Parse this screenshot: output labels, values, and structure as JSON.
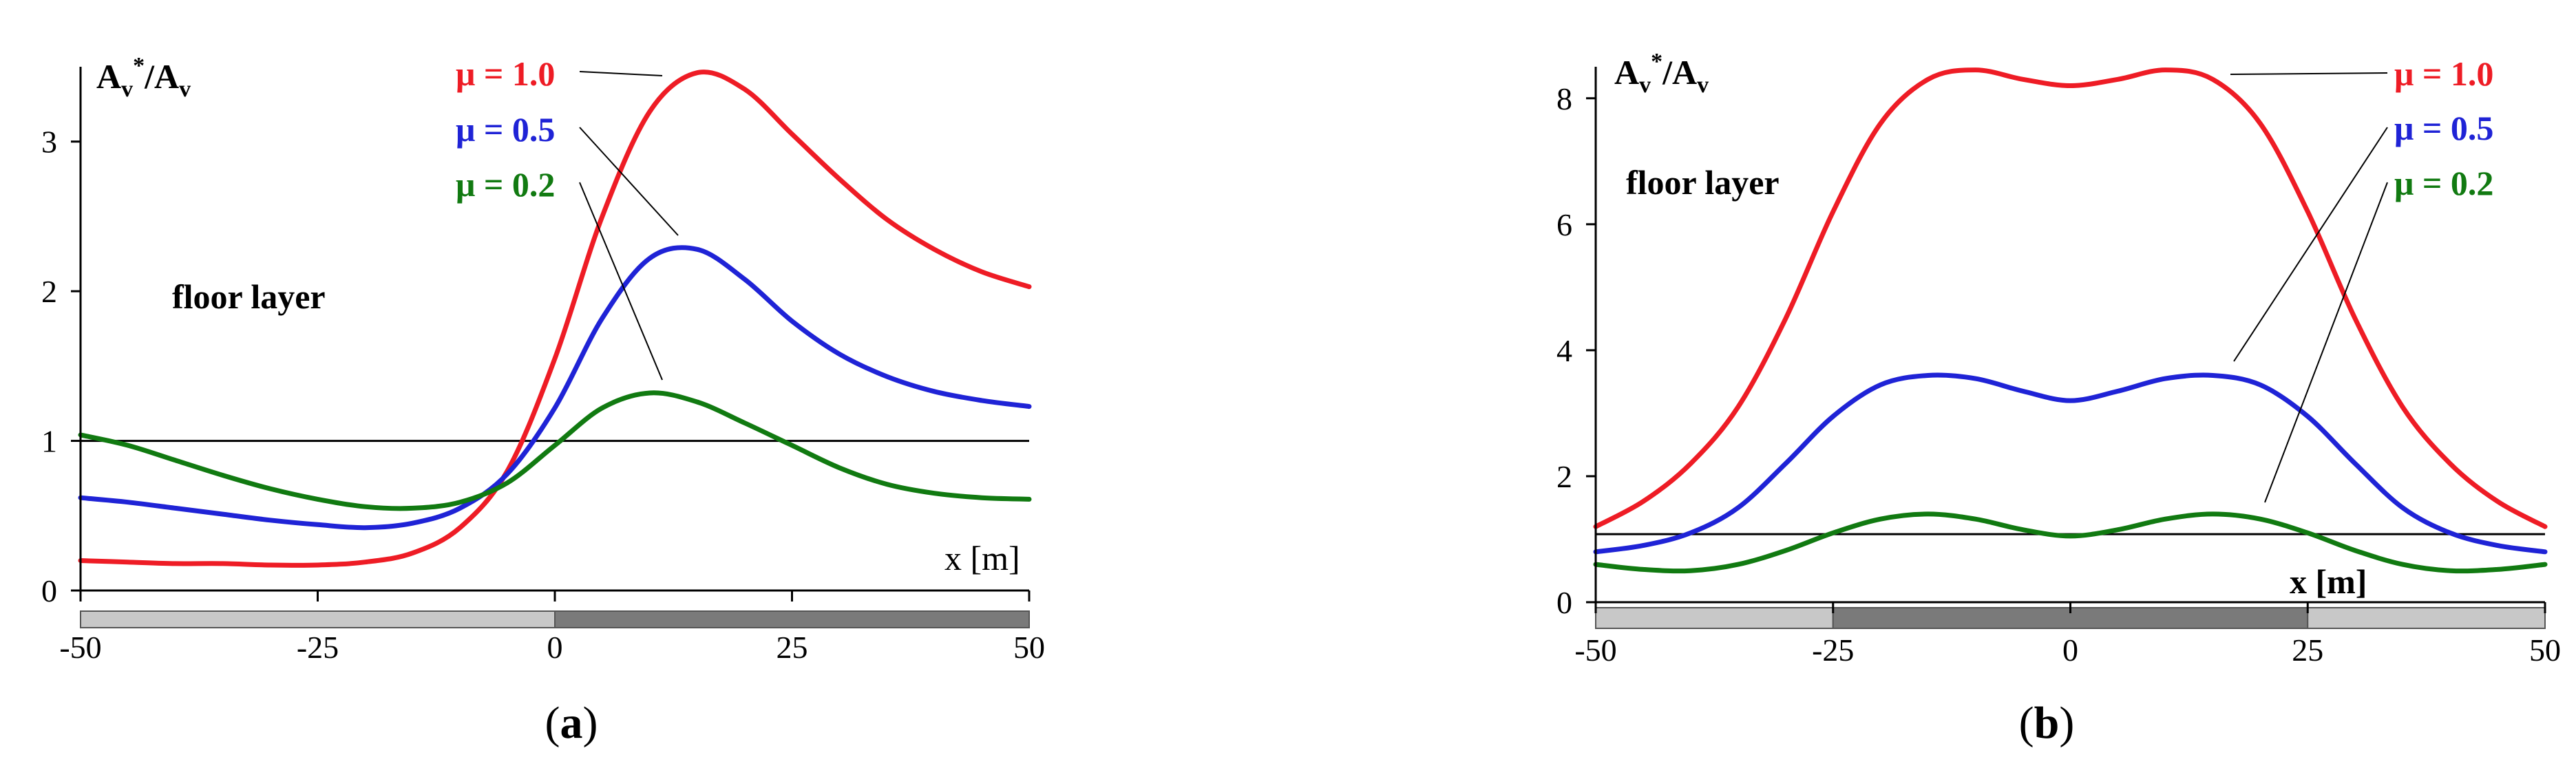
{
  "chart_data": [
    {
      "type": "line",
      "panel_label": "a",
      "ylabel": {
        "main": "A",
        "sub1": "v",
        "sup": "*",
        "sep": "/A",
        "sub2": "v"
      },
      "xlabel": "x [m]",
      "annotation": "floor layer",
      "xlim": [
        -50,
        50
      ],
      "ylim": [
        0,
        3.5
      ],
      "x_ticks": [
        -50,
        -25,
        0,
        25,
        50
      ],
      "y_ticks": [
        0,
        1,
        2,
        3
      ],
      "x_tick_labels": [
        "-50",
        "-25",
        "0",
        "25",
        "50"
      ],
      "y_tick_labels": [
        "0",
        "1",
        "2",
        "3"
      ],
      "reference_line": 1.0,
      "ground_strip": [
        {
          "from": -50,
          "to": 0,
          "shade": "#c8c8c8"
        },
        {
          "from": 0,
          "to": 50,
          "shade": "#7a7a7a"
        }
      ],
      "series": [
        {
          "name": "μ = 1.0",
          "color": "#ee1c25",
          "x": [
            -50,
            -45,
            -40,
            -35,
            -30,
            -25,
            -20,
            -15,
            -10,
            -5,
            0,
            5,
            10,
            15,
            20,
            25,
            30,
            35,
            40,
            45,
            50
          ],
          "values": [
            0.2,
            0.19,
            0.18,
            0.18,
            0.17,
            0.17,
            0.19,
            0.25,
            0.42,
            0.8,
            1.55,
            2.5,
            3.2,
            3.46,
            3.35,
            3.05,
            2.75,
            2.48,
            2.28,
            2.13,
            2.03
          ]
        },
        {
          "name": "μ = 0.5",
          "color": "#1f23d6",
          "x": [
            -50,
            -45,
            -40,
            -35,
            -30,
            -25,
            -20,
            -15,
            -10,
            -5,
            0,
            5,
            10,
            15,
            20,
            25,
            30,
            35,
            40,
            45,
            50
          ],
          "values": [
            0.62,
            0.59,
            0.55,
            0.51,
            0.47,
            0.44,
            0.42,
            0.45,
            0.55,
            0.78,
            1.22,
            1.82,
            2.22,
            2.28,
            2.08,
            1.8,
            1.58,
            1.43,
            1.33,
            1.27,
            1.23
          ]
        },
        {
          "name": "μ = 0.2",
          "color": "#117a11",
          "x": [
            -50,
            -45,
            -40,
            -35,
            -30,
            -25,
            -20,
            -15,
            -10,
            -5,
            0,
            5,
            10,
            15,
            20,
            25,
            30,
            35,
            40,
            45,
            50
          ],
          "values": [
            1.04,
            0.97,
            0.87,
            0.77,
            0.68,
            0.61,
            0.56,
            0.55,
            0.59,
            0.72,
            0.97,
            1.22,
            1.32,
            1.26,
            1.12,
            0.97,
            0.82,
            0.71,
            0.65,
            0.62,
            0.61
          ]
        }
      ]
    },
    {
      "type": "line",
      "panel_label": "b",
      "ylabel": {
        "main": "A",
        "sub1": "v",
        "sup": "*",
        "sep": "/A",
        "sub2": "v"
      },
      "xlabel": "x [m]",
      "annotation": "floor layer",
      "xlim": [
        -50,
        50
      ],
      "ylim": [
        0,
        8.5
      ],
      "x_ticks": [
        -50,
        -25,
        0,
        25,
        50
      ],
      "y_ticks": [
        0,
        2,
        4,
        6,
        8
      ],
      "x_tick_labels": [
        "-50",
        "-25",
        "0",
        "25",
        "50"
      ],
      "y_tick_labels": [
        "0",
        "2",
        "4",
        "6",
        "8"
      ],
      "reference_line": 1.08,
      "ground_strip": [
        {
          "from": -50,
          "to": -25,
          "shade": "#c8c8c8"
        },
        {
          "from": -25,
          "to": 25,
          "shade": "#7a7a7a"
        },
        {
          "from": 25,
          "to": 50,
          "shade": "#c8c8c8"
        }
      ],
      "series": [
        {
          "name": "μ = 1.0",
          "color": "#ee1c25",
          "x": [
            -50,
            -45,
            -40,
            -35,
            -30,
            -25,
            -20,
            -15,
            -10,
            -5,
            0,
            5,
            10,
            15,
            20,
            25,
            30,
            35,
            40,
            45,
            50
          ],
          "values": [
            1.2,
            1.6,
            2.2,
            3.1,
            4.5,
            6.2,
            7.6,
            8.3,
            8.45,
            8.3,
            8.2,
            8.3,
            8.45,
            8.3,
            7.6,
            6.2,
            4.5,
            3.1,
            2.2,
            1.6,
            1.2
          ]
        },
        {
          "name": "μ = 0.5",
          "color": "#1f23d6",
          "x": [
            -50,
            -45,
            -40,
            -35,
            -30,
            -25,
            -20,
            -15,
            -10,
            -5,
            0,
            5,
            10,
            15,
            20,
            25,
            30,
            35,
            40,
            45,
            50
          ],
          "values": [
            0.8,
            0.9,
            1.1,
            1.5,
            2.2,
            2.95,
            3.45,
            3.6,
            3.55,
            3.35,
            3.2,
            3.35,
            3.55,
            3.6,
            3.45,
            2.95,
            2.2,
            1.5,
            1.1,
            0.9,
            0.8
          ]
        },
        {
          "name": "μ = 0.2",
          "color": "#117a11",
          "x": [
            -50,
            -45,
            -40,
            -35,
            -30,
            -25,
            -20,
            -15,
            -10,
            -5,
            0,
            5,
            10,
            15,
            20,
            25,
            30,
            35,
            40,
            45,
            50
          ],
          "values": [
            0.6,
            0.52,
            0.5,
            0.6,
            0.82,
            1.1,
            1.32,
            1.4,
            1.32,
            1.15,
            1.05,
            1.15,
            1.32,
            1.4,
            1.32,
            1.1,
            0.82,
            0.6,
            0.5,
            0.52,
            0.6
          ]
        }
      ]
    }
  ]
}
